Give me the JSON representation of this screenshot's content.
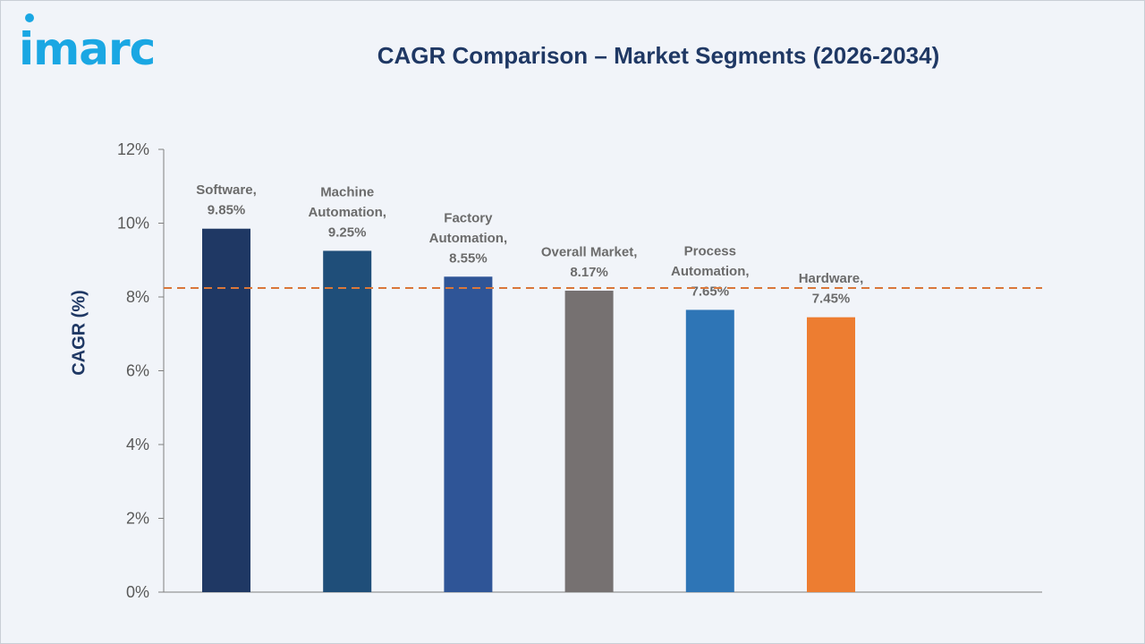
{
  "brand": {
    "logo_text": "imarc",
    "color": "#1aa7e3"
  },
  "chart_data": {
    "type": "bar",
    "title": "CAGR Comparison – Market Segments (2026-2034)",
    "xlabel": "",
    "ylabel": "CAGR (%)",
    "ylim": [
      0,
      12
    ],
    "yticks": [
      0,
      2,
      4,
      6,
      8,
      10,
      12
    ],
    "ytick_labels": [
      "0%",
      "2%",
      "4%",
      "6%",
      "8%",
      "10%",
      "12%"
    ],
    "categories": [
      "Software",
      "Machine Automation",
      "Factory Automation",
      "Overall Market",
      "Process Automation",
      "Hardware"
    ],
    "values": [
      9.85,
      9.25,
      8.55,
      8.17,
      7.65,
      7.45
    ],
    "data_labels": [
      [
        "Software,",
        "9.85%"
      ],
      [
        "Machine",
        "Automation,",
        "9.25%"
      ],
      [
        "Factory",
        "Automation,",
        "8.55%"
      ],
      [
        "Overall Market,",
        "8.17%"
      ],
      [
        "Process",
        "Automation,",
        "7.65%"
      ],
      [
        "Hardware,",
        "7.45%"
      ]
    ],
    "colors": [
      "#1f3864",
      "#1f4e79",
      "#2f5597",
      "#767171",
      "#2e75b6",
      "#ed7d31"
    ],
    "reference_line": {
      "value": 8.17,
      "style": "dashed",
      "color": "#d9773a"
    },
    "grid": false,
    "legend": "none"
  }
}
